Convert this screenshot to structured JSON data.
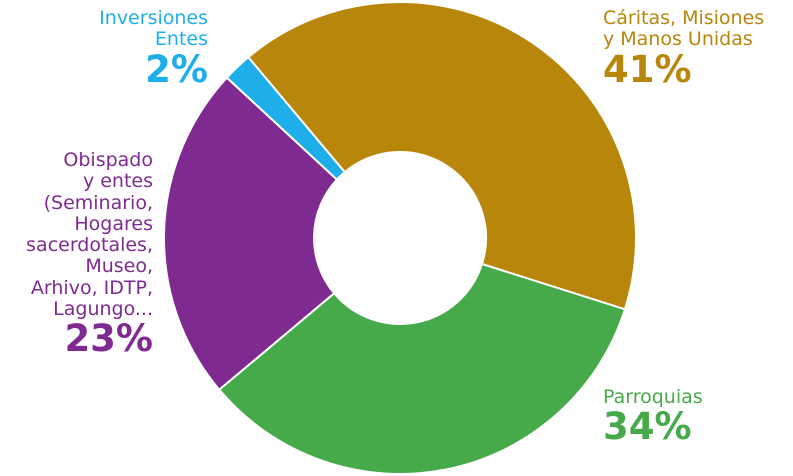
{
  "chart_data": {
    "type": "pie",
    "donut": true,
    "title": "",
    "slices": [
      {
        "label": "Cáritas, Misiones y Manos Unidas",
        "lines": [
          "Cáritas, Misiones",
          "y Manos Unidas"
        ],
        "value": 41,
        "value_text": "41%",
        "color": "#B8860B"
      },
      {
        "label": "Parroquias",
        "lines": [
          "Parroquias"
        ],
        "value": 34,
        "value_text": "34%",
        "color": "#46A94A"
      },
      {
        "label": "Obispado y entes (Seminario, Hogares sacerdotales, Museo, Arhivo, IDTP, Lagungo...",
        "lines": [
          "Obispado",
          "y entes",
          "(Seminario,",
          "Hogares",
          "sacerdotales,",
          "Museo,",
          "Arhivo, IDTP,",
          "Lagungo..."
        ],
        "value": 23,
        "value_text": "23%",
        "color": "#7F2A90"
      },
      {
        "label": "Inversiones Entes",
        "lines": [
          "Inversiones",
          "Entes"
        ],
        "value": 2,
        "value_text": "2%",
        "color": "#1EAFEA"
      }
    ]
  }
}
